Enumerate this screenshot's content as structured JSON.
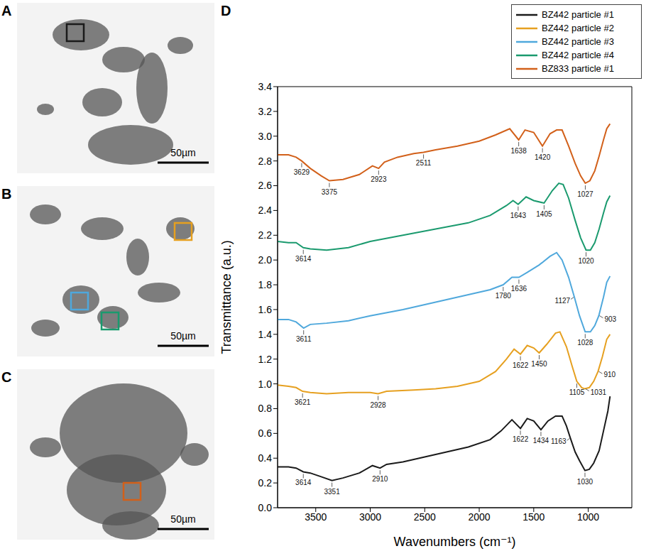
{
  "panels": [
    {
      "label": "A",
      "scale_bar": "50µm",
      "boxes": [
        "#1a1a1a"
      ]
    },
    {
      "label": "B",
      "scale_bar": "50µm",
      "boxes": [
        "#e6a020",
        "#4fa8dc",
        "#1a9a6e"
      ]
    },
    {
      "label": "C",
      "scale_bar": "50µm",
      "boxes": [
        "#d2601a"
      ]
    }
  ],
  "chart_data": {
    "label": "D",
    "type": "line",
    "x_label": "Wavenumbers (cm⁻¹)",
    "y_label": "Transmittance (a.u.)",
    "xlim": [
      3850,
      600
    ],
    "xticks": [
      3500,
      3000,
      2500,
      2000,
      1500,
      1000
    ],
    "ylim": [
      0,
      3.4
    ],
    "yticks": [
      {
        "value": 0,
        "label": "0.0"
      },
      0.2,
      0.4,
      0.6,
      0.8,
      {
        "value": 1,
        "label": "1.0"
      },
      1.2,
      1.4,
      1.6,
      1.8,
      {
        "value": 2,
        "label": "2.0"
      },
      2.2,
      2.4,
      2.6,
      2.8,
      {
        "value": 3,
        "label": "3.0"
      },
      3.2,
      3.4
    ],
    "legend": "top-right",
    "series": [
      {
        "name": "BZ442 particle #1",
        "color": "#1a1a1a",
        "x": [
          3850,
          3750,
          3680,
          3614,
          3550,
          3450,
          3351,
          3250,
          3100,
          2980,
          2910,
          2850,
          2700,
          2500,
          2300,
          2100,
          1900,
          1800,
          1700,
          1622,
          1560,
          1500,
          1434,
          1370,
          1300,
          1240,
          1200,
          1163,
          1120,
          1080,
          1030,
          990,
          950,
          900,
          860,
          820,
          800
        ],
        "values": [
          0.33,
          0.33,
          0.32,
          0.29,
          0.28,
          0.25,
          0.22,
          0.24,
          0.28,
          0.34,
          0.32,
          0.35,
          0.37,
          0.41,
          0.45,
          0.49,
          0.55,
          0.62,
          0.71,
          0.64,
          0.72,
          0.7,
          0.63,
          0.7,
          0.74,
          0.74,
          0.66,
          0.56,
          0.45,
          0.38,
          0.3,
          0.31,
          0.36,
          0.46,
          0.62,
          0.78,
          0.9
        ],
        "peaks": [
          3614,
          3351,
          2910,
          1622,
          1434,
          1163,
          1030
        ]
      },
      {
        "name": "BZ442 particle #2",
        "color": "#e6a020",
        "x": [
          3850,
          3750,
          3680,
          3621,
          3550,
          3400,
          3200,
          3000,
          2928,
          2850,
          2600,
          2400,
          2200,
          2000,
          1850,
          1750,
          1680,
          1622,
          1560,
          1500,
          1450,
          1380,
          1300,
          1260,
          1200,
          1150,
          1105,
          1060,
          1031,
          990,
          950,
          910,
          870,
          830,
          800
        ],
        "values": [
          0.99,
          0.98,
          0.97,
          0.94,
          0.93,
          0.92,
          0.93,
          0.93,
          0.92,
          0.94,
          0.95,
          0.96,
          0.98,
          1.02,
          1.1,
          1.2,
          1.28,
          1.24,
          1.31,
          1.29,
          1.25,
          1.32,
          1.41,
          1.42,
          1.3,
          1.15,
          1.02,
          0.97,
          0.96,
          0.97,
          1.02,
          1.1,
          1.22,
          1.36,
          1.4
        ],
        "peaks": [
          3621,
          2928,
          1622,
          1450,
          1105,
          1031,
          910
        ]
      },
      {
        "name": "BZ442 particle #3",
        "color": "#4fa8dc",
        "x": [
          3850,
          3750,
          3680,
          3611,
          3550,
          3400,
          3200,
          3000,
          2700,
          2400,
          2100,
          1900,
          1780,
          1700,
          1636,
          1560,
          1450,
          1350,
          1290,
          1240,
          1180,
          1127,
          1080,
          1028,
          980,
          940,
          903,
          860,
          830,
          800
        ],
        "values": [
          1.52,
          1.52,
          1.5,
          1.45,
          1.48,
          1.49,
          1.51,
          1.55,
          1.6,
          1.66,
          1.72,
          1.76,
          1.8,
          1.86,
          1.86,
          1.9,
          1.96,
          2.03,
          2.06,
          2.0,
          1.86,
          1.7,
          1.55,
          1.42,
          1.42,
          1.47,
          1.55,
          1.7,
          1.82,
          1.87
        ],
        "peaks": [
          3611,
          1780,
          1636,
          1127,
          1028,
          903
        ]
      },
      {
        "name": "BZ442 particle #4",
        "color": "#1a9a6e",
        "x": [
          3850,
          3750,
          3680,
          3614,
          3550,
          3400,
          3200,
          3000,
          2700,
          2400,
          2100,
          1900,
          1750,
          1690,
          1643,
          1570,
          1500,
          1405,
          1330,
          1270,
          1230,
          1180,
          1120,
          1070,
          1020,
          980,
          940,
          900,
          860,
          830,
          800
        ],
        "values": [
          2.15,
          2.14,
          2.14,
          2.1,
          2.09,
          2.08,
          2.1,
          2.15,
          2.2,
          2.25,
          2.3,
          2.36,
          2.44,
          2.48,
          2.45,
          2.51,
          2.48,
          2.46,
          2.56,
          2.62,
          2.61,
          2.5,
          2.32,
          2.18,
          2.08,
          2.08,
          2.14,
          2.25,
          2.38,
          2.47,
          2.52
        ],
        "peaks": [
          3614,
          1643,
          1405,
          1020
        ]
      },
      {
        "name": "BZ833 particle #1",
        "color": "#d2601a",
        "x": [
          3850,
          3750,
          3680,
          3629,
          3550,
          3450,
          3375,
          3250,
          3100,
          2980,
          2923,
          2870,
          2750,
          2600,
          2511,
          2400,
          2200,
          2000,
          1850,
          1720,
          1638,
          1580,
          1500,
          1420,
          1350,
          1290,
          1240,
          1180,
          1120,
          1070,
          1027,
          985,
          940,
          900,
          860,
          830,
          800
        ],
        "values": [
          2.85,
          2.85,
          2.83,
          2.8,
          2.74,
          2.68,
          2.64,
          2.65,
          2.69,
          2.76,
          2.74,
          2.79,
          2.83,
          2.86,
          2.87,
          2.89,
          2.92,
          2.96,
          3.01,
          3.06,
          2.97,
          3.05,
          3.03,
          2.92,
          3.02,
          3.05,
          3.05,
          2.92,
          2.78,
          2.68,
          2.62,
          2.64,
          2.72,
          2.84,
          2.97,
          3.06,
          3.1
        ],
        "peaks": [
          3629,
          3375,
          2923,
          2511,
          1638,
          1420,
          1027
        ]
      }
    ]
  }
}
